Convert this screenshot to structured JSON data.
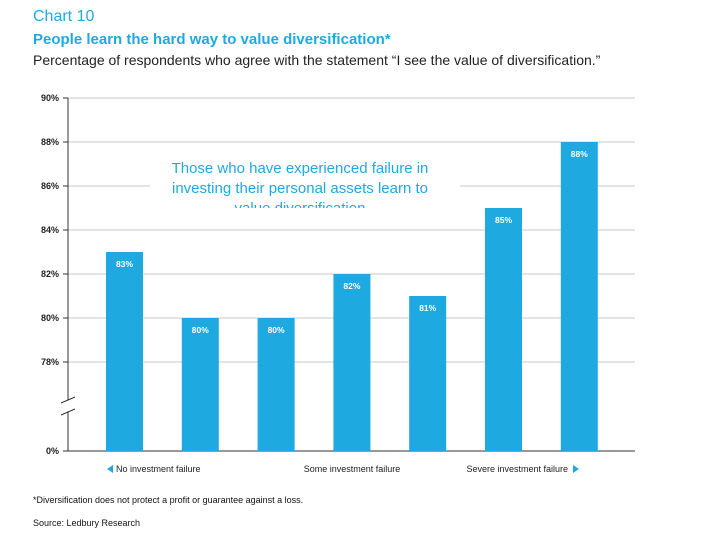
{
  "header": {
    "chart_number": "Chart 10",
    "title": "People learn the hard way to value diversification*",
    "subtitle": "Percentage of respondents who agree with the statement “I see the value of diversification.”"
  },
  "annotation": {
    "lines": [
      "Those who have experienced failure in",
      "investing their personal assets learn to",
      "value diversification"
    ]
  },
  "groups": {
    "left": "No investment failure",
    "middle": "Some investment failure",
    "right": "Severe investment failure"
  },
  "footer": {
    "footnote": "*Diversification does not protect a profit or guarantee against a loss.",
    "source": "Source: Ledbury Research"
  },
  "colors": {
    "bar": "#1fa9e1",
    "accent": "#1fa9e1",
    "grid": "#c8c8c8"
  },
  "chart_data": {
    "type": "bar",
    "values": [
      83,
      80,
      80,
      82,
      81,
      85,
      88
    ],
    "data_labels": [
      "83%",
      "80%",
      "80%",
      "82%",
      "81%",
      "85%",
      "88%"
    ],
    "y_ticks": [
      "0%",
      "78%",
      "80%",
      "82%",
      "84%",
      "86%",
      "88%",
      "90%"
    ],
    "y_tick_values": [
      0,
      78,
      80,
      82,
      84,
      86,
      88,
      90
    ],
    "ylim": [
      0,
      90
    ],
    "axis_break": [
      0,
      78
    ],
    "grid": true
  }
}
